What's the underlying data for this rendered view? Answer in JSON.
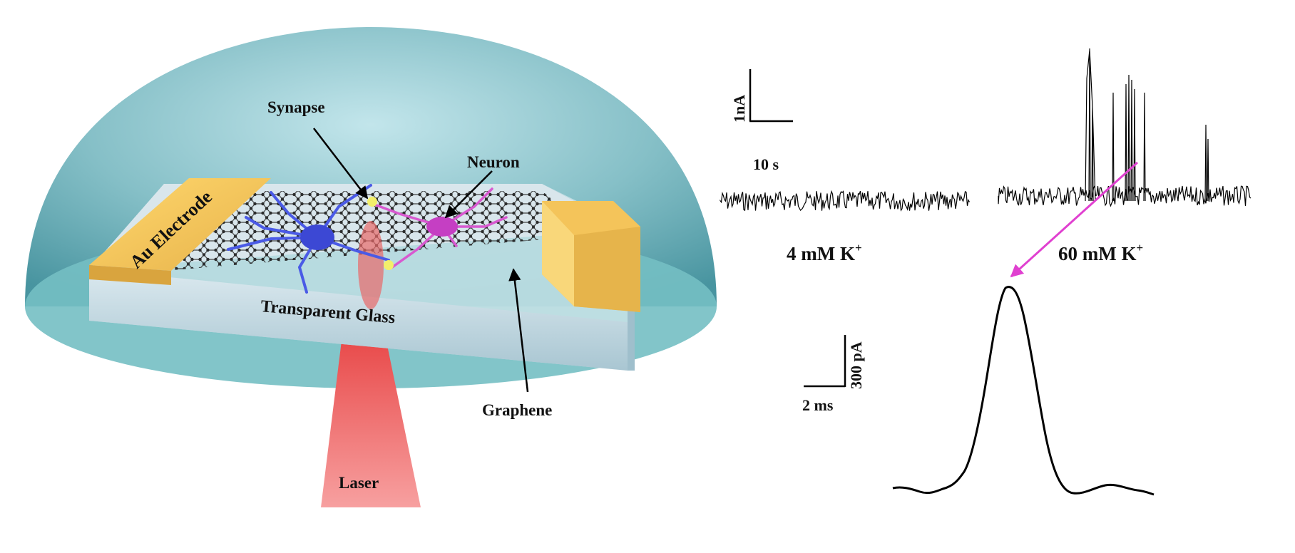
{
  "labels": {
    "synapse": "Synapse",
    "neuron": "Neuron",
    "au_electrode": "Au Electrode",
    "transparent_glass": "Transparent Glass",
    "graphene": "Graphene",
    "laser": "Laser"
  },
  "scale_bars": {
    "top_current": "1nA",
    "top_time": "10 s",
    "bottom_current": "300 pA",
    "bottom_time": "2 ms"
  },
  "conditions": {
    "low": {
      "text": "4 mM K",
      "ion_charge": "+"
    },
    "high": {
      "text": "60 mM K",
      "ion_charge": "+"
    }
  },
  "colors": {
    "dome": "#5aa3ac",
    "dome_base": "#6fbdc1",
    "glass": "#c9dde6",
    "electrode": "#f2c55c",
    "graphene": "#2a2a2a",
    "neuron_blue": "#4656e0",
    "neuron_magenta": "#d84fd0",
    "synapse": "#f3ef6a",
    "laser": "#f05a5a",
    "zoom_arrow": "#e040d0",
    "trace": "#000000"
  }
}
